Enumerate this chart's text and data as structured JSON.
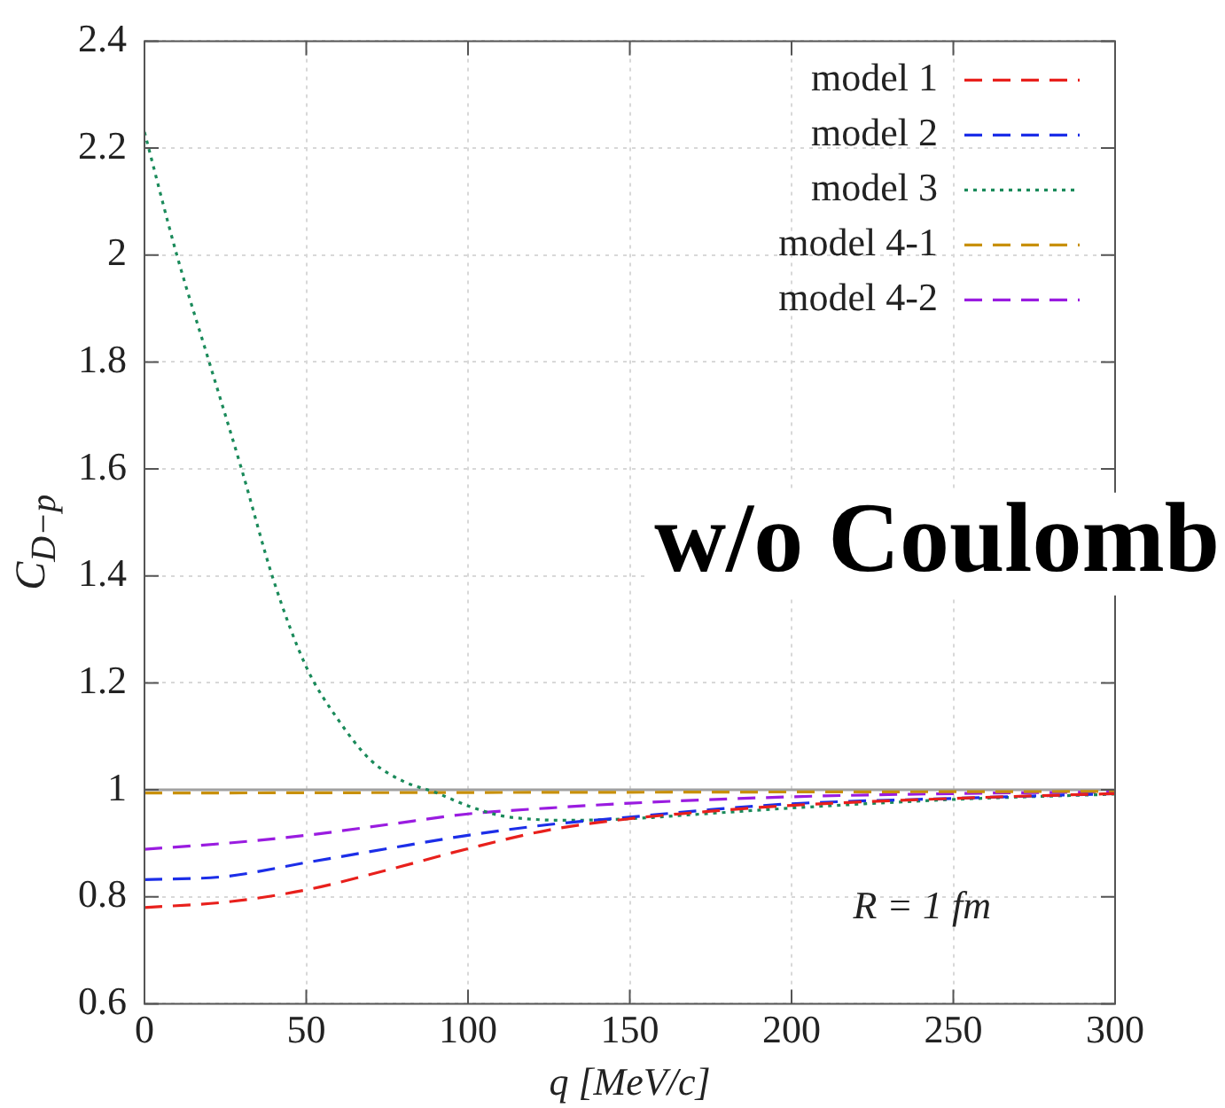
{
  "chart_data": {
    "type": "line",
    "xlabel": "q [MeV/c]",
    "ylabel": "C$_{D−p}$",
    "annotations": [
      "w/o Coulomb",
      "R = 1 fm"
    ],
    "xlim": [
      0,
      300
    ],
    "xticks": [
      0,
      50,
      100,
      150,
      200,
      250,
      300
    ],
    "ylim": [
      0.6,
      2.4
    ],
    "yticks": [
      0.6,
      0.8,
      1,
      1.2,
      1.4,
      1.6,
      1.8,
      2,
      2.2,
      2.4
    ],
    "grid": true,
    "legend": "top right",
    "marker": "none",
    "ref_lines": [
      {
        "axis": "y",
        "value": 1,
        "color": "#a0a0a0"
      }
    ],
    "series": [
      {
        "name": "model 1",
        "color": "#e8201c",
        "line_style": "dashed",
        "x": [
          0,
          25,
          50,
          75,
          100,
          125,
          150,
          175,
          200,
          250,
          300
        ],
        "values": [
          0.78,
          0.79,
          0.813,
          0.85,
          0.89,
          0.925,
          0.946,
          0.96,
          0.971,
          0.984,
          0.993
        ]
      },
      {
        "name": "model 2",
        "color": "#1c2ee8",
        "line_style": "dashed",
        "x": [
          0,
          25,
          50,
          75,
          100,
          125,
          150,
          175,
          200,
          250,
          300
        ],
        "values": [
          0.832,
          0.838,
          0.864,
          0.89,
          0.915,
          0.935,
          0.949,
          0.963,
          0.974,
          0.984,
          0.993
        ]
      },
      {
        "name": "model 3",
        "color": "#1a8a5a",
        "line_style": "dotted",
        "x": [
          0,
          10,
          20,
          30,
          40,
          50,
          60,
          70,
          80,
          90,
          100,
          110,
          120,
          130,
          150,
          175,
          200,
          250,
          300
        ],
        "values": [
          2.23,
          2.0,
          1.8,
          1.6,
          1.39,
          1.23,
          1.13,
          1.055,
          1.016,
          0.995,
          0.97,
          0.952,
          0.945,
          0.943,
          0.946,
          0.956,
          0.966,
          0.982,
          0.992
        ]
      },
      {
        "name": "model 4-1",
        "color": "#c8900a",
        "line_style": "dashed",
        "x": [
          0,
          100,
          200,
          300
        ],
        "values": [
          0.994,
          0.995,
          0.996,
          0.997
        ]
      },
      {
        "name": "model 4-2",
        "color": "#9a1ce0",
        "line_style": "dashed",
        "x": [
          0,
          25,
          50,
          75,
          100,
          125,
          150,
          200,
          250,
          300
        ],
        "values": [
          0.889,
          0.9,
          0.915,
          0.935,
          0.955,
          0.966,
          0.975,
          0.987,
          0.993,
          0.996
        ]
      }
    ]
  }
}
